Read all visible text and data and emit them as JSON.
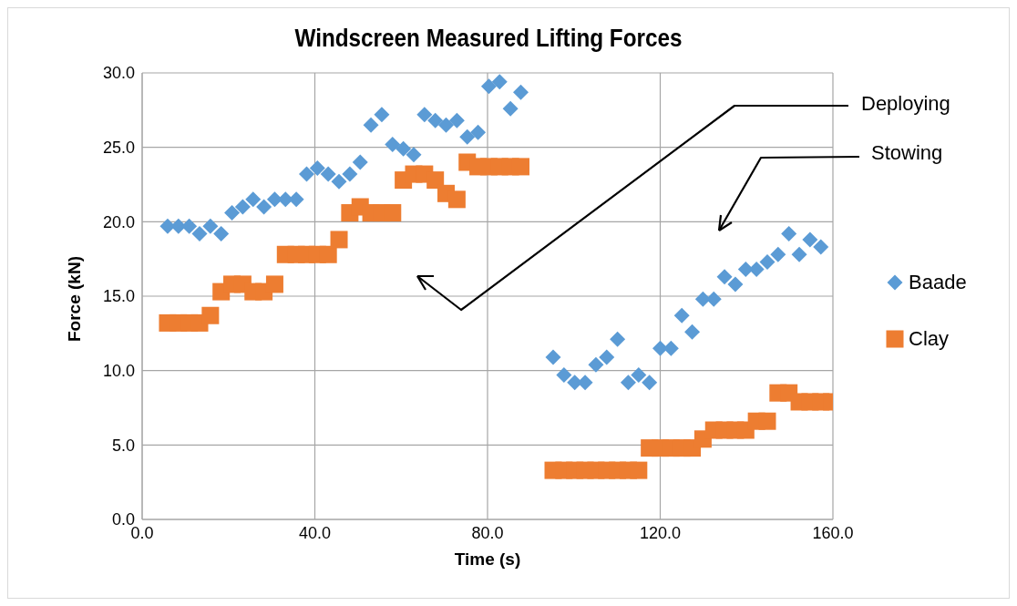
{
  "chart_data": {
    "type": "scatter",
    "title": "Windscreen Measured Lifting Forces",
    "xlabel": "Time (s)",
    "ylabel": "Force (kN)",
    "xlim": [
      0,
      160
    ],
    "xticks": [
      {
        "value": 0,
        "label": "0.0"
      },
      {
        "value": 40,
        "label": "40.0"
      },
      {
        "value": 80,
        "label": "80.0"
      },
      {
        "value": 120,
        "label": "120.0"
      },
      {
        "value": 160,
        "label": "160.0"
      }
    ],
    "ylim": [
      0,
      30
    ],
    "yticks": [
      {
        "value": 0,
        "label": "0.0"
      },
      {
        "value": 5,
        "label": "5.0"
      },
      {
        "value": 10,
        "label": "10.0"
      },
      {
        "value": 15,
        "label": "15.0"
      },
      {
        "value": 20,
        "label": "20.0"
      },
      {
        "value": 25,
        "label": "25.0"
      },
      {
        "value": 30,
        "label": "30.0"
      }
    ],
    "grid": true,
    "legend": "right",
    "annotations": [
      "Deploying",
      "Stowing"
    ],
    "series": [
      {
        "name": "Baade",
        "color": "#5b9bd5",
        "marker": "diamond",
        "x": [
          5.9,
          8.4,
          10.9,
          13.3,
          15.8,
          18.3,
          20.8,
          23.3,
          25.7,
          28.2,
          30.7,
          33.2,
          35.7,
          38.1,
          40.6,
          43.1,
          45.6,
          48.1,
          50.5,
          53.0,
          55.5,
          58.0,
          60.5,
          62.9,
          65.4,
          67.9,
          70.4,
          72.9,
          75.3,
          77.8,
          80.3,
          82.8,
          85.3,
          87.7,
          95.2,
          97.7,
          100.2,
          102.6,
          105.1,
          107.6,
          110.1,
          112.6,
          115.0,
          117.5,
          120.0,
          122.5,
          125.0,
          127.4,
          129.9,
          132.4,
          134.9,
          137.4,
          139.8,
          142.3,
          144.8,
          147.3,
          149.8,
          152.2,
          154.7,
          157.2
        ],
        "values": [
          19.7,
          19.7,
          19.7,
          19.2,
          19.7,
          19.2,
          20.6,
          21.0,
          21.5,
          21.0,
          21.5,
          21.5,
          21.5,
          23.2,
          23.6,
          23.2,
          22.7,
          23.2,
          24.0,
          26.5,
          27.2,
          25.2,
          24.9,
          24.5,
          27.2,
          26.8,
          26.5,
          26.8,
          25.7,
          26.0,
          29.1,
          29.4,
          27.6,
          28.7,
          10.9,
          9.7,
          9.2,
          9.2,
          10.4,
          10.9,
          12.1,
          9.2,
          9.7,
          9.2,
          11.5,
          11.5,
          13.7,
          12.6,
          14.8,
          14.8,
          16.3,
          15.8,
          16.8,
          16.8,
          17.3,
          17.8,
          19.2,
          17.8,
          18.8,
          18.3
        ]
      },
      {
        "name": "Clay",
        "color": "#ed7d31",
        "marker": "square",
        "x": [
          5.9,
          8.4,
          10.9,
          13.3,
          15.8,
          18.3,
          20.8,
          23.3,
          25.7,
          28.2,
          30.7,
          33.2,
          35.7,
          38.1,
          40.6,
          43.1,
          45.6,
          48.1,
          50.5,
          53.0,
          55.5,
          58.0,
          60.5,
          62.9,
          65.4,
          67.9,
          70.4,
          72.9,
          75.3,
          77.8,
          80.3,
          82.8,
          85.3,
          87.7,
          95.2,
          97.7,
          100.2,
          102.6,
          105.1,
          107.6,
          110.1,
          112.6,
          115.0,
          117.5,
          120.0,
          122.5,
          125.0,
          127.4,
          129.9,
          132.4,
          134.9,
          137.4,
          139.8,
          142.3,
          144.8,
          147.3,
          149.8,
          152.2,
          154.7,
          157.2,
          159.7
        ],
        "values": [
          13.2,
          13.2,
          13.2,
          13.2,
          13.7,
          15.3,
          15.8,
          15.8,
          15.3,
          15.3,
          15.8,
          17.8,
          17.8,
          17.8,
          17.8,
          17.8,
          18.8,
          20.6,
          21.0,
          20.6,
          20.6,
          20.6,
          22.8,
          23.2,
          23.2,
          22.8,
          21.9,
          21.5,
          24.0,
          23.7,
          23.7,
          23.7,
          23.7,
          23.7,
          3.3,
          3.3,
          3.3,
          3.3,
          3.3,
          3.3,
          3.3,
          3.3,
          3.3,
          4.8,
          4.8,
          4.8,
          4.8,
          4.8,
          5.4,
          6.0,
          6.0,
          6.0,
          6.0,
          6.6,
          6.6,
          8.5,
          8.5,
          7.9,
          7.9,
          7.9,
          7.9
        ]
      }
    ]
  }
}
